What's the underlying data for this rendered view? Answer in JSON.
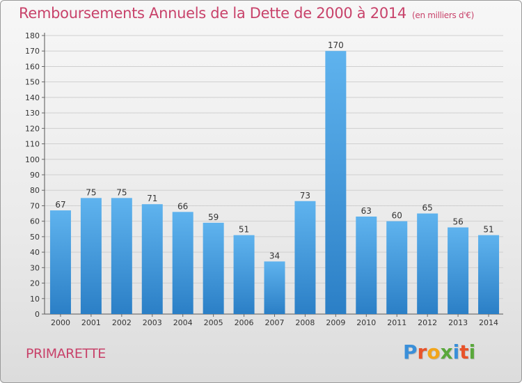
{
  "header": {
    "title": "Remboursements Annuels de la Dette de 2000 à 2014",
    "unit": "(en milliers d'€)"
  },
  "footer": {
    "place": "PRIMARETTE",
    "logo_letters": [
      "P",
      "r",
      "o",
      "x",
      "i",
      "t",
      "i"
    ]
  },
  "colors": {
    "title": "#c8426a",
    "bar_top": "#5fb3ee",
    "bar_bottom": "#2b7fc6",
    "logo": [
      "#3a8fd9",
      "#e8532a",
      "#f2a51a",
      "#5aa83c",
      "#3a8fd9",
      "#e8532a",
      "#5aa83c"
    ]
  },
  "chart_data": {
    "type": "bar",
    "title": "Remboursements Annuels de la Dette de 2000 à 2014",
    "categories": [
      "2000",
      "2001",
      "2002",
      "2003",
      "2004",
      "2005",
      "2006",
      "2007",
      "2008",
      "2009",
      "2010",
      "2011",
      "2012",
      "2013",
      "2014"
    ],
    "values": [
      67,
      75,
      75,
      71,
      66,
      59,
      51,
      34,
      73,
      170,
      63,
      60,
      65,
      56,
      51
    ],
    "ylim": [
      0,
      180
    ],
    "yticks": [
      0,
      10,
      20,
      30,
      40,
      50,
      60,
      70,
      80,
      90,
      100,
      110,
      120,
      130,
      140,
      150,
      160,
      170,
      180
    ],
    "grid": true
  }
}
